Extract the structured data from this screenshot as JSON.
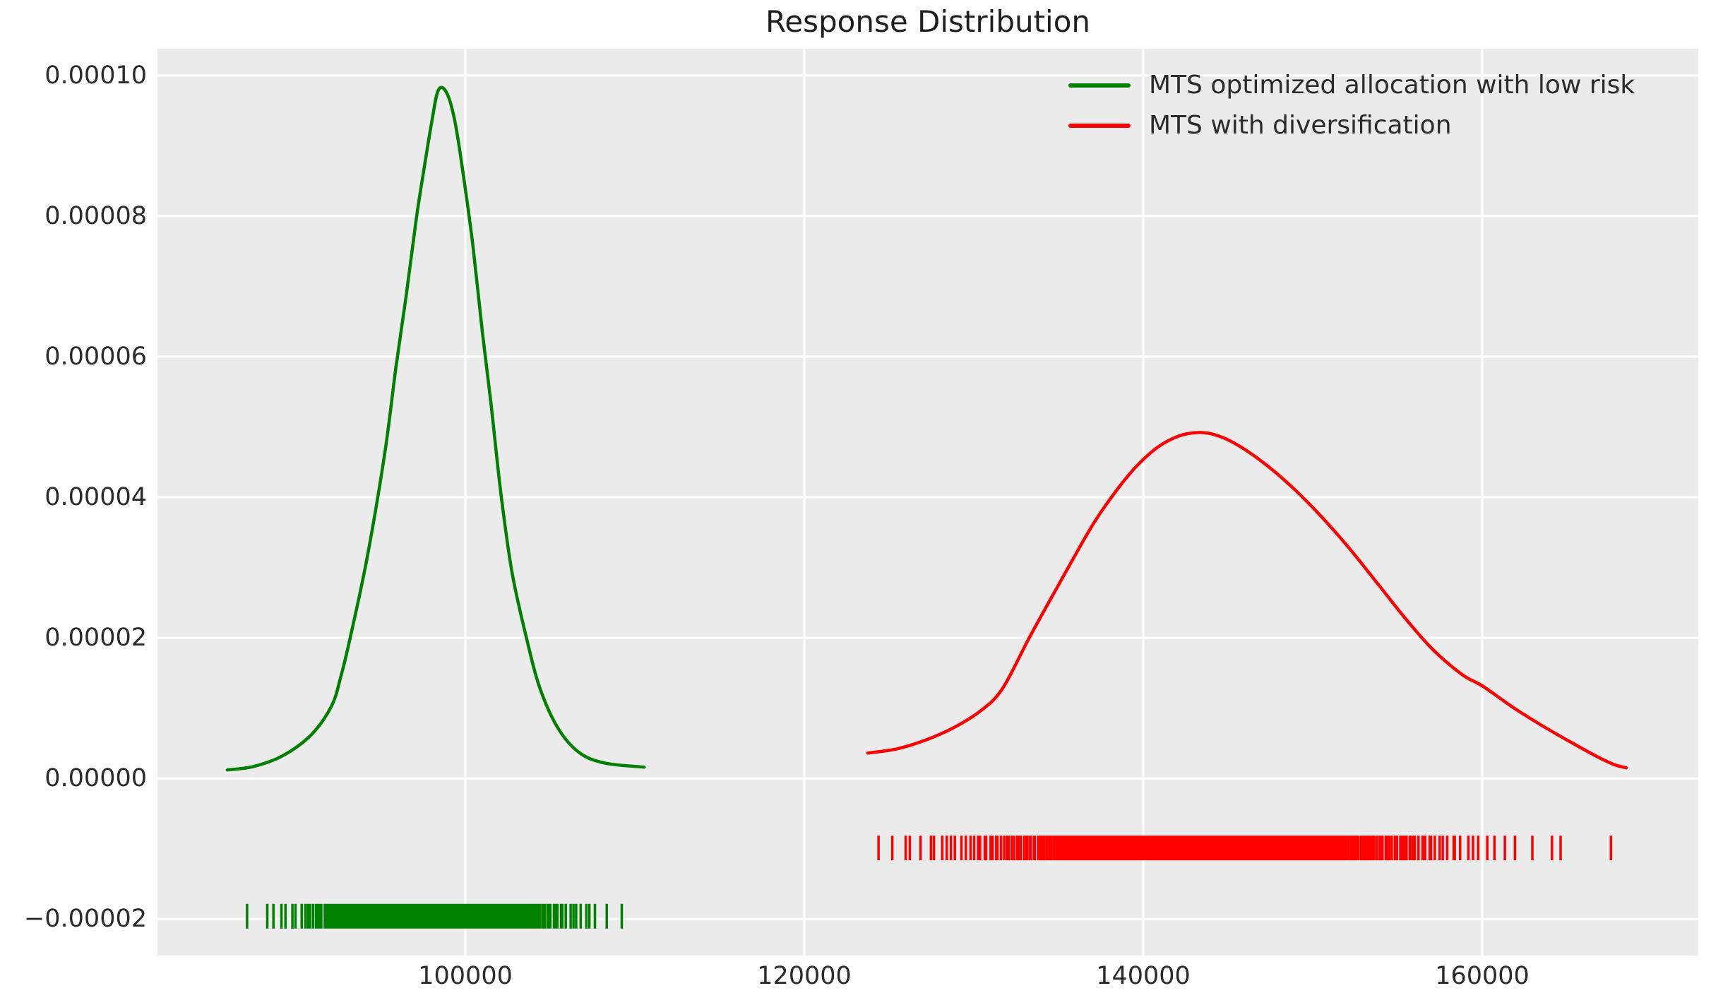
{
  "title": "Response Distribution",
  "legend": {
    "items": [
      {
        "label": "MTS optimized allocation with low risk",
        "color": "#008000"
      },
      {
        "label": "MTS with diversification",
        "color": "#ff0000"
      }
    ]
  },
  "axes": {
    "xlim": [
      81830,
      172750
    ],
    "ylim": [
      -2.52e-05,
      0.0001038
    ],
    "grid": true,
    "x_ticks": [
      {
        "value": 100000,
        "label": "100000"
      },
      {
        "value": 120000,
        "label": "120000"
      },
      {
        "value": 140000,
        "label": "140000"
      },
      {
        "value": 160000,
        "label": "160000"
      }
    ],
    "y_ticks": [
      {
        "value": 0.0001,
        "label": "0.00010"
      },
      {
        "value": 8e-05,
        "label": "0.00008"
      },
      {
        "value": 6e-05,
        "label": "0.00006"
      },
      {
        "value": 4e-05,
        "label": "0.00004"
      },
      {
        "value": 2e-05,
        "label": "0.00002"
      },
      {
        "value": 0.0,
        "label": "0.00000"
      },
      {
        "value": -2e-05,
        "label": "−0.00002"
      }
    ]
  },
  "style": {
    "figure_bg": "#ffffff",
    "plot_bg": "#ebebeb",
    "grid_color": "#ffffff",
    "text_color": "#2b2b2b",
    "green": "#008000",
    "red": "#ff0000"
  },
  "chart_data": {
    "type": "line",
    "variant": "kde_with_rug",
    "title": "Response Distribution",
    "xlabel": "",
    "ylabel": "",
    "legend_position": "upper right",
    "series": [
      {
        "name": "MTS optimized allocation with low risk",
        "color": "#008000",
        "peak": {
          "x": 98400,
          "density": 9.8e-05
        },
        "kde_points": [
          [
            85950,
            1.2e-06
          ],
          [
            87500,
            1.7e-06
          ],
          [
            89200,
            3.2e-06
          ],
          [
            90900,
            6.2e-06
          ],
          [
            92100,
            1.03e-05
          ],
          [
            92650,
            1.45e-05
          ],
          [
            93200,
            2e-05
          ],
          [
            94200,
            3.14e-05
          ],
          [
            95250,
            4.64e-05
          ],
          [
            95900,
            5.85e-05
          ],
          [
            96500,
            6.86e-05
          ],
          [
            97100,
            7.96e-05
          ],
          [
            97550,
            8.66e-05
          ],
          [
            98000,
            9.32e-05
          ],
          [
            98400,
            9.79e-05
          ],
          [
            98900,
            9.75e-05
          ],
          [
            99400,
            9.32e-05
          ],
          [
            99950,
            8.46e-05
          ],
          [
            100450,
            7.56e-05
          ],
          [
            101000,
            6.35e-05
          ],
          [
            101500,
            5.35e-05
          ],
          [
            102100,
            4.04e-05
          ],
          [
            102750,
            2.93e-05
          ],
          [
            103600,
            2e-05
          ],
          [
            104400,
            1.28e-05
          ],
          [
            105450,
            7.2e-06
          ],
          [
            106700,
            3.7e-06
          ],
          [
            108200,
            2.2e-06
          ],
          [
            110550,
            1.6e-06
          ]
        ],
        "rug": {
          "n": 320,
          "mean": 98300,
          "sd": 4150,
          "min": 85900,
          "max": 110600,
          "seed": 42,
          "row_center": -1.96e-05,
          "tick_height": 3.5e-06
        }
      },
      {
        "name": "MTS with diversification",
        "color": "#ff0000",
        "peak": {
          "x": 143200,
          "density": 4.9e-05
        },
        "kde_points": [
          [
            123750,
            3.6e-06
          ],
          [
            125450,
            4.2e-06
          ],
          [
            127100,
            5.4e-06
          ],
          [
            128800,
            7.2e-06
          ],
          [
            130450,
            9.7e-06
          ],
          [
            131700,
            1.28e-05
          ],
          [
            133250,
            1.99e-05
          ],
          [
            134600,
            2.58e-05
          ],
          [
            135900,
            3.14e-05
          ],
          [
            137100,
            3.64e-05
          ],
          [
            138400,
            4.09e-05
          ],
          [
            139600,
            4.44e-05
          ],
          [
            140900,
            4.72e-05
          ],
          [
            142100,
            4.87e-05
          ],
          [
            143200,
            4.92e-05
          ],
          [
            144200,
            4.89e-05
          ],
          [
            145450,
            4.76e-05
          ],
          [
            147100,
            4.49e-05
          ],
          [
            148800,
            4.14e-05
          ],
          [
            150450,
            3.74e-05
          ],
          [
            152100,
            3.29e-05
          ],
          [
            153800,
            2.78e-05
          ],
          [
            155450,
            2.28e-05
          ],
          [
            157100,
            1.83e-05
          ],
          [
            158800,
            1.48e-05
          ],
          [
            160050,
            1.31e-05
          ],
          [
            161700,
            1.03e-05
          ],
          [
            163400,
            7.7e-06
          ],
          [
            165050,
            5.4e-06
          ],
          [
            166700,
            3.2e-06
          ],
          [
            167750,
            2e-06
          ],
          [
            168500,
            1.5e-06
          ]
        ],
        "rug": {
          "n": 380,
          "mean": 143600,
          "sd": 8100,
          "min": 123700,
          "max": 168600,
          "seed": 99,
          "row_center": -9.9e-06,
          "tick_height": 3.5e-06
        }
      }
    ]
  }
}
